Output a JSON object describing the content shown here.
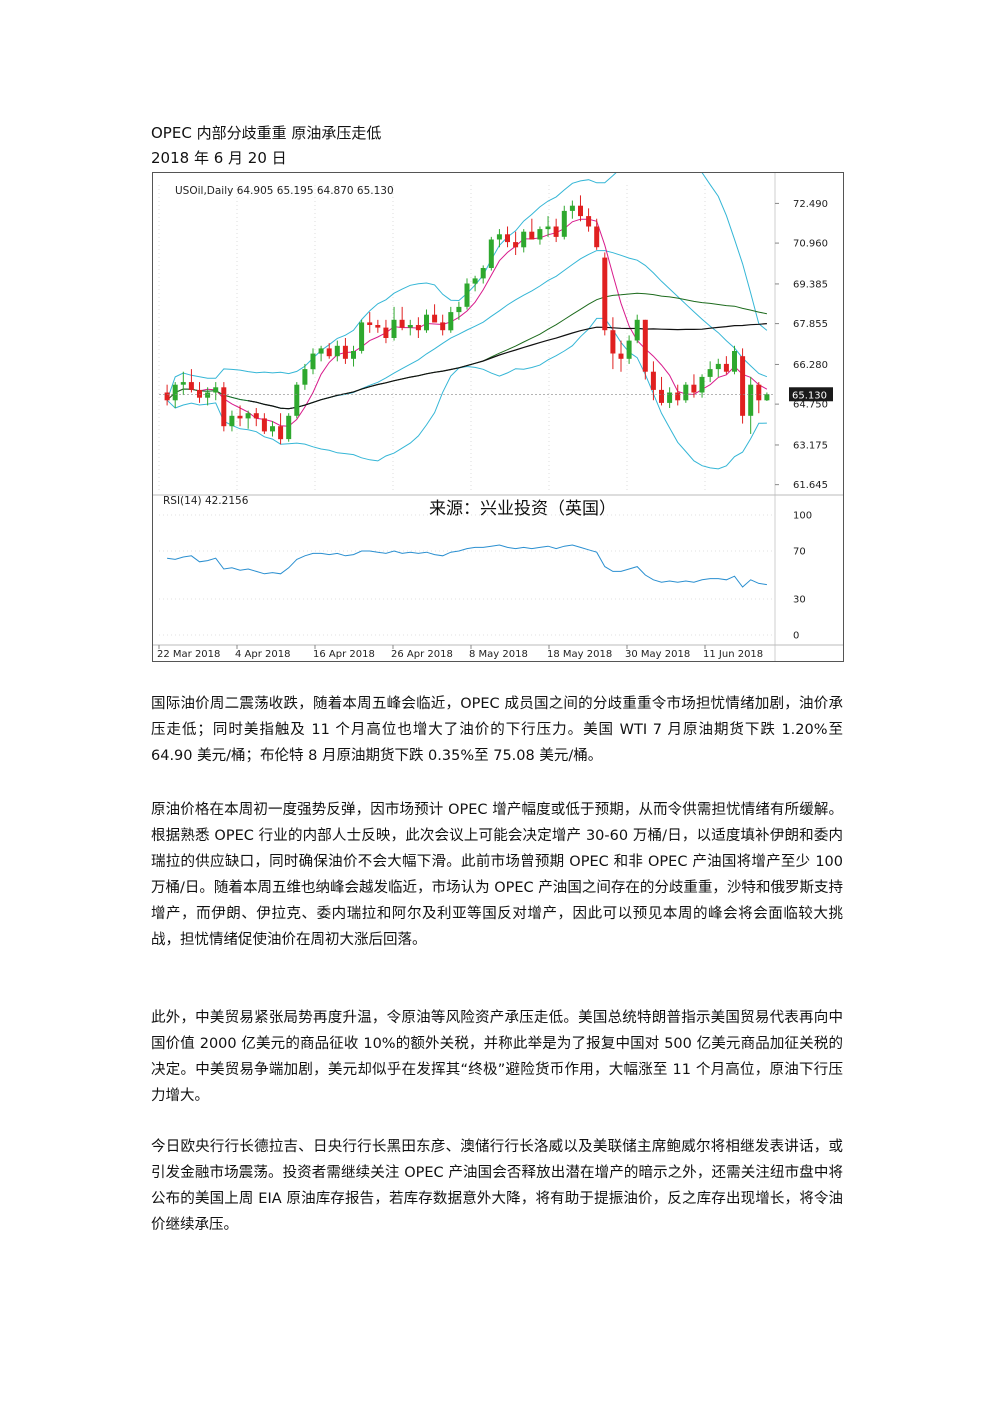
{
  "document": {
    "title": "OPEC 内部分歧重重  原油承压走低",
    "date": "2018 年 6 月 20 日",
    "paragraphs": [
      "国际油价周二震荡收跌，随着本周五峰会临近，OPEC 成员国之间的分歧重重令市场担忧情绪加剧，油价承压走低；同时美指触及 11 个月高位也增大了油价的下行压力。美国 WTI 7 月原油期货下跌 1.20%至 64.90 美元/桶；布伦特 8 月原油期货下跌 0.35%至 75.08 美元/桶。",
      "原油价格在本周初一度强势反弹，因市场预计 OPEC 增产幅度或低于预期，从而令供需担忧情绪有所缓解。根据熟悉 OPEC 行业的内部人士反映，此次会议上可能会决定增产 30-60 万桶/日，以适度填补伊朗和委内瑞拉的供应缺口，同时确保油价不会大幅下滑。此前市场曾预期 OPEC 和非 OPEC 产油国将增产至少 100 万桶/日。随着本周五维也纳峰会越发临近，市场认为 OPEC 产油国之间存在的分歧重重，沙特和俄罗斯支持增产，而伊朗、伊拉克、委内瑞拉和阿尔及利亚等国反对增产，因此可以预见本周的峰会将会面临较大挑战，担忧情绪促使油价在周初大涨后回落。",
      "此外，中美贸易紧张局势再度升温，令原油等风险资产承压走低。美国总统特朗普指示美国贸易代表再向中国价值 2000 亿美元的商品征收 10%的额外关税，并称此举是为了报复中国对 500 亿美元商品加征关税的决定。中美贸易争端加剧，美元却似乎在发挥其“终极”避险货币作用，大幅涨至 11 个月高位，原油下行压力增大。",
      "今日欧央行行长德拉吉、日央行行长黑田东彦、澳储行行长洛威以及美联储主席鲍威尔将相继发表讲话，或引发金融市场震荡。投资者需继续关注 OPEC 产油国会否释放出潜在增产的暗示之外，还需关注纽市盘中将公布的美国上周 EIA 原油库存报告，若库存数据意外大降，将有助于提振油价，反之库存出现增长，将令油价继续承压。"
    ]
  },
  "chart_data": {
    "type": "candlestick",
    "header": "USOil,Daily  64.905 65.195 64.870 65.130",
    "watermark": "来源：兴业投资（英国）",
    "current_price_label": "65.130",
    "current_price": 65.13,
    "price_axis_ticks": [
      "72.490",
      "70.960",
      "69.385",
      "67.855",
      "66.280",
      "64.750",
      "63.175",
      "61.645"
    ],
    "price_range": [
      61.4,
      73.2
    ],
    "rsi_label": "RSI(14) 42.2156",
    "rsi_ticks": [
      "100",
      "70",
      "30",
      "0"
    ],
    "date_labels": [
      "22 Mar 2018",
      "4 Apr 2018",
      "16 Apr 2018",
      "26 Apr 2018",
      "8 May 2018",
      "18 May 2018",
      "30 May 2018",
      "11 Jun 2018"
    ],
    "colors": {
      "up": "#2ea82e",
      "down": "#e02020",
      "bollinger": "#35b6d6",
      "ma_fast": "#d81b8c",
      "ma_mid": "#1d6b1d",
      "ma_slow": "#111111",
      "rsi": "#2a8fd0"
    },
    "candles": [
      [
        65.2,
        65.5,
        64.7,
        64.9
      ],
      [
        64.9,
        65.6,
        64.6,
        65.5
      ],
      [
        65.5,
        66.0,
        65.1,
        65.6
      ],
      [
        65.6,
        66.1,
        65.2,
        65.3
      ],
      [
        65.3,
        65.6,
        64.8,
        65.0
      ],
      [
        65.0,
        65.4,
        64.7,
        65.2
      ],
      [
        65.2,
        65.6,
        64.9,
        65.4
      ],
      [
        65.4,
        65.6,
        63.7,
        63.9
      ],
      [
        63.9,
        64.5,
        63.7,
        64.3
      ],
      [
        64.3,
        64.7,
        63.9,
        64.2
      ],
      [
        64.2,
        64.5,
        63.8,
        64.4
      ],
      [
        64.4,
        64.6,
        63.9,
        64.2
      ],
      [
        64.2,
        64.4,
        63.6,
        63.7
      ],
      [
        63.7,
        64.1,
        63.5,
        63.9
      ],
      [
        63.9,
        64.4,
        63.2,
        63.4
      ],
      [
        63.4,
        64.4,
        63.3,
        64.3
      ],
      [
        64.3,
        65.6,
        64.2,
        65.5
      ],
      [
        65.5,
        66.3,
        65.3,
        66.1
      ],
      [
        66.1,
        66.9,
        65.9,
        66.7
      ],
      [
        66.7,
        67.0,
        66.4,
        66.9
      ],
      [
        66.9,
        67.1,
        66.5,
        66.6
      ],
      [
        66.6,
        67.2,
        66.4,
        67.0
      ],
      [
        67.0,
        67.3,
        66.3,
        66.5
      ],
      [
        66.5,
        67.0,
        66.2,
        66.8
      ],
      [
        66.8,
        68.0,
        66.7,
        67.9
      ],
      [
        67.9,
        68.3,
        67.5,
        67.8
      ],
      [
        67.8,
        68.0,
        67.5,
        67.7
      ],
      [
        67.7,
        68.0,
        67.1,
        67.3
      ],
      [
        67.3,
        68.5,
        67.2,
        68.0
      ],
      [
        68.0,
        68.5,
        67.6,
        67.7
      ],
      [
        67.7,
        68.0,
        67.4,
        67.8
      ],
      [
        67.8,
        68.1,
        67.3,
        67.6
      ],
      [
        67.6,
        68.4,
        67.5,
        68.2
      ],
      [
        68.2,
        68.6,
        67.9,
        67.9
      ],
      [
        67.9,
        68.2,
        67.4,
        67.6
      ],
      [
        67.6,
        68.5,
        67.5,
        68.3
      ],
      [
        68.3,
        68.7,
        68.0,
        68.5
      ],
      [
        68.5,
        69.6,
        68.4,
        69.4
      ],
      [
        69.4,
        69.7,
        69.1,
        69.6
      ],
      [
        69.6,
        70.1,
        69.4,
        70.0
      ],
      [
        70.0,
        71.2,
        69.9,
        71.1
      ],
      [
        71.1,
        71.5,
        70.8,
        71.3
      ],
      [
        71.3,
        71.6,
        70.8,
        71.0
      ],
      [
        71.0,
        71.4,
        70.5,
        70.8
      ],
      [
        70.8,
        71.5,
        70.6,
        71.4
      ],
      [
        71.4,
        71.9,
        71.1,
        71.1
      ],
      [
        71.1,
        71.6,
        70.9,
        71.5
      ],
      [
        71.5,
        72.0,
        71.2,
        71.6
      ],
      [
        71.6,
        71.9,
        71.0,
        71.2
      ],
      [
        71.2,
        72.4,
        71.1,
        72.2
      ],
      [
        72.2,
        72.6,
        71.9,
        72.4
      ],
      [
        72.4,
        72.8,
        71.8,
        72.0
      ],
      [
        72.0,
        72.3,
        71.4,
        71.6
      ],
      [
        71.6,
        71.9,
        70.7,
        70.8
      ],
      [
        70.4,
        70.6,
        67.4,
        67.6
      ],
      [
        67.6,
        68.1,
        66.1,
        66.7
      ],
      [
        66.7,
        67.2,
        66.0,
        66.5
      ],
      [
        66.5,
        67.4,
        66.3,
        67.2
      ],
      [
        67.2,
        68.2,
        67.1,
        68.0
      ],
      [
        68.0,
        68.0,
        65.7,
        66.0
      ],
      [
        66.0,
        66.4,
        64.9,
        65.3
      ],
      [
        65.3,
        65.8,
        64.7,
        64.8
      ],
      [
        64.8,
        65.4,
        64.6,
        65.2
      ],
      [
        65.2,
        65.5,
        64.7,
        64.9
      ],
      [
        64.9,
        65.6,
        64.8,
        65.5
      ],
      [
        65.5,
        65.9,
        65.0,
        65.2
      ],
      [
        65.2,
        65.9,
        65.0,
        65.8
      ],
      [
        65.8,
        66.4,
        65.6,
        66.1
      ],
      [
        66.1,
        66.5,
        65.8,
        66.3
      ],
      [
        66.3,
        66.6,
        65.9,
        66.0
      ],
      [
        66.0,
        67.0,
        65.9,
        66.8
      ],
      [
        66.6,
        66.9,
        64.0,
        64.3
      ],
      [
        64.3,
        65.8,
        63.6,
        65.5
      ],
      [
        65.5,
        65.6,
        64.4,
        64.9
      ],
      [
        64.9,
        65.2,
        64.87,
        65.13
      ]
    ],
    "rsi_values": [
      64,
      63,
      65,
      66,
      61,
      62,
      64,
      55,
      56,
      54,
      55,
      53,
      51,
      52,
      51,
      56,
      63,
      66,
      68,
      68,
      67,
      68,
      66,
      67,
      70,
      70,
      69,
      68,
      70,
      68,
      69,
      68,
      69,
      67,
      66,
      69,
      70,
      72,
      73,
      73,
      74,
      75,
      73,
      72,
      73,
      72,
      73,
      74,
      72,
      74,
      75,
      73,
      71,
      69,
      57,
      53,
      53,
      55,
      57,
      50,
      46,
      44,
      45,
      44,
      45,
      44,
      46,
      47,
      47,
      46,
      49,
      40,
      46,
      43,
      42
    ]
  }
}
